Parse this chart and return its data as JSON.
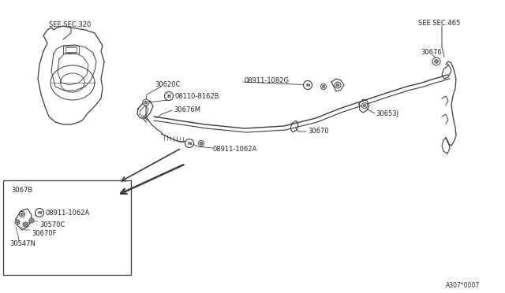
{
  "bg_color": "#ffffff",
  "line_color": "#3a3a3a",
  "text_color": "#222222",
  "diagram_code": "A307*0007",
  "labels": {
    "see_sec_320": "SEE SEC.320",
    "see_sec_465": "SEE SEC.465",
    "part_30620C": "30620C",
    "part_30676M": "30676M",
    "part_30676": "30676",
    "part_30670": "30670",
    "part_30653J": "30653J",
    "part_08110_8162B": "08110-8162B",
    "part_08911_1082G": "08911-1082G",
    "part_08911_1062A_main": "08911-1062A",
    "part_3067B": "3067B",
    "part_08911_1062A_inset": "08911-1062A",
    "part_30570C": "30570C",
    "part_30670F": "30670F",
    "part_30547N": "30547N"
  }
}
